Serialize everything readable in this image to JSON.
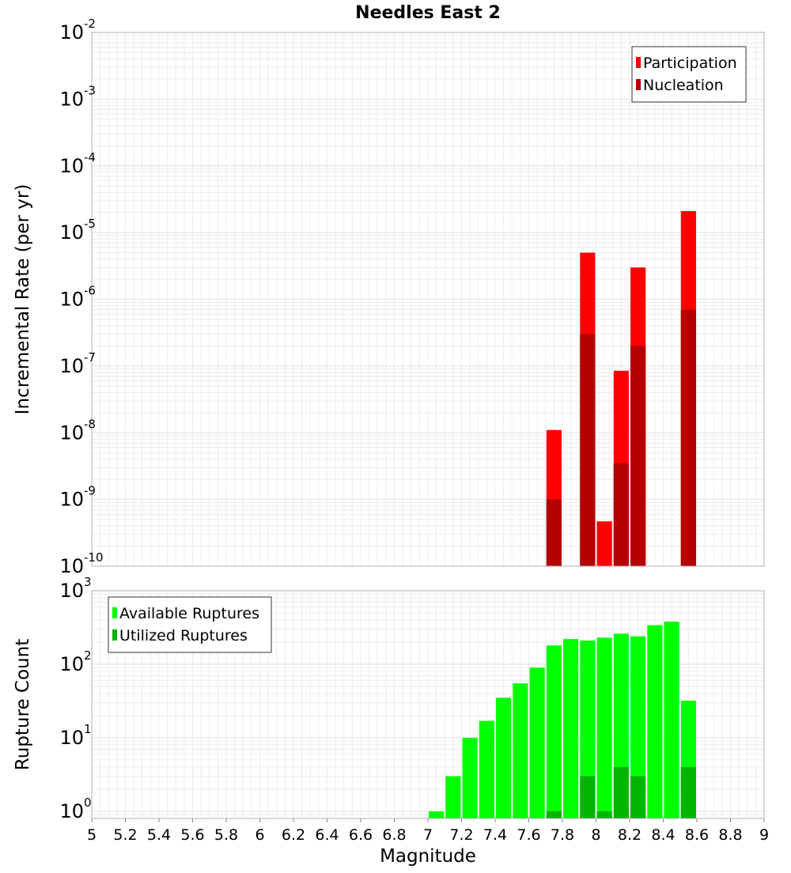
{
  "chart_data": [
    {
      "type": "bar",
      "title": "Needles East 2",
      "ylabel": "Incremental Rate (per yr)",
      "xlabel": "",
      "y_scale": "log",
      "ylim": [
        1e-10,
        0.01
      ],
      "xlim": [
        5,
        9
      ],
      "y_ticks": [
        {
          "base": "10",
          "exp": "-10"
        },
        {
          "base": "10",
          "exp": "-9"
        },
        {
          "base": "10",
          "exp": "-8"
        },
        {
          "base": "10",
          "exp": "-7"
        },
        {
          "base": "10",
          "exp": "-6"
        },
        {
          "base": "10",
          "exp": "-5"
        },
        {
          "base": "10",
          "exp": "-4"
        },
        {
          "base": "10",
          "exp": "-3"
        },
        {
          "base": "10",
          "exp": "-2"
        }
      ],
      "legend": {
        "placement": "top-right",
        "entries": [
          {
            "label": "Participation",
            "color": "#ff0000"
          },
          {
            "label": "Nucleation",
            "color": "#b40000"
          }
        ]
      },
      "series": [
        {
          "name": "Participation",
          "color": "#ff0000",
          "x": [
            7.75,
            7.95,
            8.05,
            8.15,
            8.25,
            8.55
          ],
          "values": [
            1.1e-08,
            5e-06,
            4.7e-10,
            8.5e-08,
            3e-06,
            2.1e-05
          ]
        },
        {
          "name": "Nucleation",
          "color": "#b40000",
          "x": [
            7.75,
            7.95,
            8.15,
            8.25,
            8.55
          ],
          "values": [
            1e-09,
            3e-07,
            3.5e-09,
            2e-07,
            7e-07
          ]
        }
      ],
      "bar_width": 0.09,
      "grid": true
    },
    {
      "type": "bar",
      "title": "",
      "ylabel": "Rupture Count",
      "xlabel": "Magnitude",
      "y_scale": "log",
      "ylim": [
        0.8,
        1000
      ],
      "xlim": [
        5,
        9
      ],
      "x_ticks": [
        "5",
        "5.2",
        "5.4",
        "5.6",
        "5.8",
        "6",
        "6.2",
        "6.4",
        "6.6",
        "6.8",
        "7",
        "7.2",
        "7.4",
        "7.6",
        "7.8",
        "8",
        "8.2",
        "8.4",
        "8.6",
        "8.8",
        "9"
      ],
      "x_tick_values": [
        5,
        5.2,
        5.4,
        5.6,
        5.8,
        6,
        6.2,
        6.4,
        6.6,
        6.8,
        7,
        7.2,
        7.4,
        7.6,
        7.8,
        8,
        8.2,
        8.4,
        8.6,
        8.8,
        9
      ],
      "y_ticks": [
        {
          "base": "10",
          "exp": "0"
        },
        {
          "base": "10",
          "exp": "1"
        },
        {
          "base": "10",
          "exp": "2"
        },
        {
          "base": "10",
          "exp": "3"
        }
      ],
      "legend": {
        "placement": "top-left",
        "entries": [
          {
            "label": "Available Ruptures",
            "color": "#00ff00"
          },
          {
            "label": "Utilized Ruptures",
            "color": "#00b400"
          }
        ]
      },
      "series": [
        {
          "name": "Available Ruptures",
          "color": "#00ff00",
          "x": [
            7.05,
            7.15,
            7.25,
            7.35,
            7.45,
            7.55,
            7.65,
            7.75,
            7.85,
            7.95,
            8.05,
            8.15,
            8.25,
            8.35,
            8.45,
            8.55
          ],
          "values": [
            1,
            3,
            10,
            17,
            35,
            55,
            90,
            180,
            220,
            210,
            230,
            260,
            240,
            340,
            380,
            32
          ]
        },
        {
          "name": "Utilized Ruptures",
          "color": "#00b400",
          "x": [
            7.75,
            7.95,
            8.05,
            8.15,
            8.25,
            8.55
          ],
          "values": [
            1,
            3,
            1,
            4,
            3,
            4
          ]
        }
      ],
      "bar_width": 0.09,
      "grid": true
    }
  ]
}
